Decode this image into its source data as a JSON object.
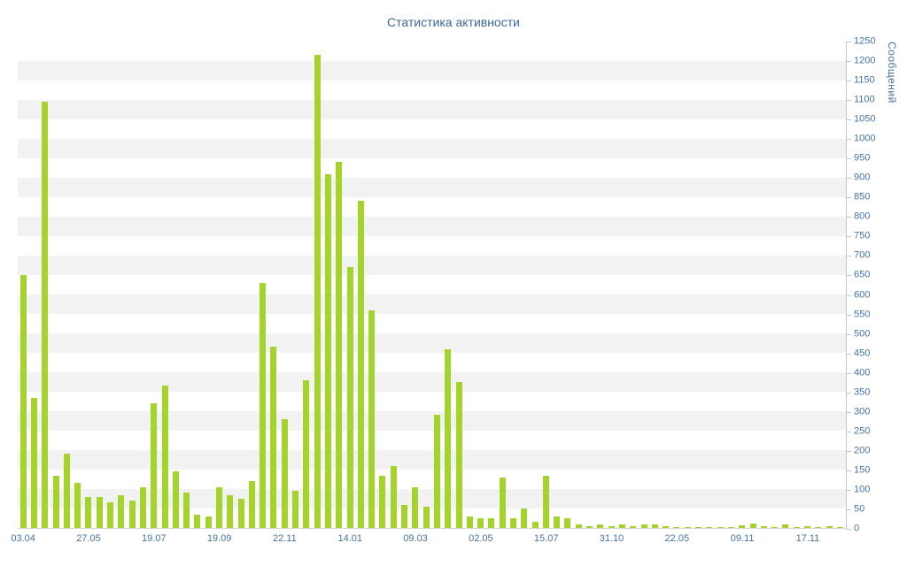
{
  "chart_data": {
    "type": "bar",
    "title": "Статистика активности",
    "xlabel": "",
    "ylabel": "Сообщений",
    "ylim": [
      0,
      1250
    ],
    "ytick_step": 50,
    "legend": "none",
    "grid": "alternating-horizontal-bands",
    "x_tick_every": 6,
    "x_tick_labels": [
      "03.04",
      "27.05",
      "19.07",
      "19.09",
      "22.11",
      "14.01",
      "09.03",
      "02.05",
      "15.07",
      "31.10",
      "22.05",
      "09.11",
      "17.11"
    ],
    "values": [
      650,
      335,
      1095,
      135,
      190,
      115,
      80,
      80,
      65,
      85,
      70,
      105,
      320,
      365,
      145,
      90,
      35,
      30,
      105,
      85,
      75,
      120,
      630,
      465,
      280,
      95,
      380,
      1215,
      910,
      940,
      670,
      840,
      560,
      135,
      160,
      60,
      105,
      55,
      290,
      460,
      375,
      30,
      25,
      25,
      130,
      25,
      50,
      15,
      135,
      30,
      25,
      10,
      5,
      8,
      4,
      8,
      5,
      10,
      8,
      4,
      3,
      3,
      2,
      3,
      2,
      3,
      6,
      12,
      5,
      3,
      8,
      3,
      5,
      3,
      4,
      2
    ],
    "colors": {
      "bar": "#a4d32b",
      "band": "#f2f2f2",
      "background": "#ffffff",
      "title": "#3a66a0",
      "axis_label": "#4572a7",
      "axis_line": "#c6c6c6"
    }
  }
}
